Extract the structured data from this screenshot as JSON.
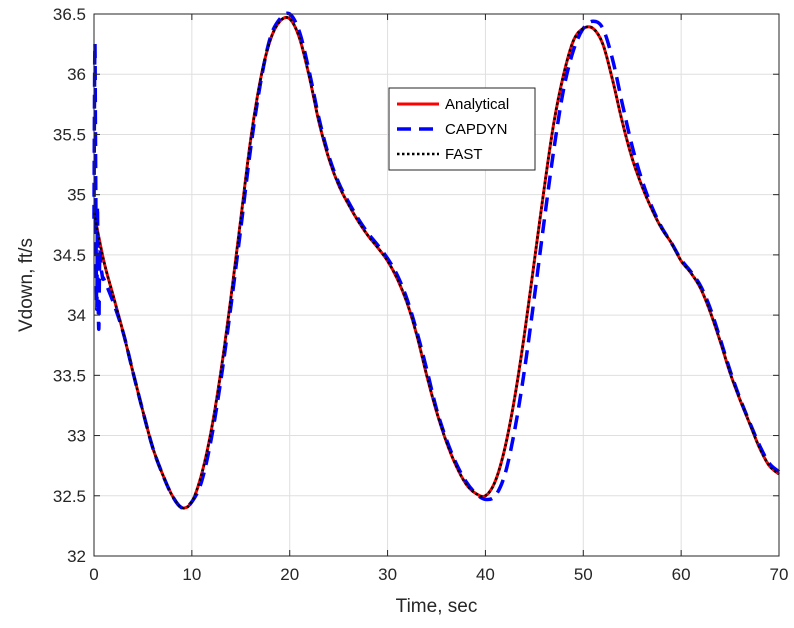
{
  "chart_data": {
    "type": "line",
    "xlabel": "Time, sec",
    "ylabel": "Vdown, ft/s",
    "xlim": [
      0,
      70
    ],
    "ylim": [
      32,
      36.5
    ],
    "xticks": [
      0,
      10,
      20,
      30,
      40,
      50,
      60,
      70
    ],
    "yticks": [
      32,
      32.5,
      33,
      33.5,
      34,
      34.5,
      35,
      35.5,
      36,
      36.5
    ],
    "xtick_labels": [
      "0",
      "10",
      "20",
      "30",
      "40",
      "50",
      "60",
      "70"
    ],
    "ytick_labels": [
      "32",
      "32.5",
      "33",
      "33.5",
      "34",
      "34.5",
      "35",
      "35.5",
      "36",
      "36.5"
    ],
    "grid": true,
    "legend_position": "top-center",
    "series": [
      {
        "name": "Analytical",
        "color": "#ff0000",
        "style": "solid",
        "x": [
          0,
          1,
          2,
          3,
          4,
          5,
          6,
          7,
          8,
          9,
          10,
          11,
          12,
          13,
          14,
          15,
          16,
          17,
          18,
          19,
          20,
          21,
          22,
          23,
          24,
          25,
          26,
          27,
          28,
          29,
          30,
          31,
          32,
          33,
          34,
          35,
          36,
          37,
          38,
          39,
          40,
          41,
          42,
          43,
          44,
          45,
          46,
          47,
          48,
          49,
          50,
          51,
          52,
          53,
          54,
          55,
          56,
          57,
          58,
          59,
          60,
          61,
          62,
          63,
          64,
          65,
          66,
          67,
          68,
          69,
          70
        ],
        "y": [
          34.85,
          34.45,
          34.15,
          33.85,
          33.52,
          33.2,
          32.9,
          32.68,
          32.5,
          32.4,
          32.45,
          32.68,
          33.05,
          33.55,
          34.15,
          34.8,
          35.45,
          35.95,
          36.28,
          36.44,
          36.46,
          36.3,
          35.98,
          35.6,
          35.3,
          35.08,
          34.92,
          34.78,
          34.66,
          34.56,
          34.45,
          34.3,
          34.1,
          33.83,
          33.5,
          33.2,
          32.95,
          32.75,
          32.6,
          32.52,
          32.5,
          32.62,
          32.9,
          33.32,
          33.85,
          34.45,
          35.05,
          35.6,
          36.0,
          36.28,
          36.38,
          36.38,
          36.25,
          35.95,
          35.6,
          35.3,
          35.07,
          34.88,
          34.72,
          34.6,
          34.45,
          34.35,
          34.22,
          34.02,
          33.78,
          33.52,
          33.3,
          33.1,
          32.9,
          32.75,
          32.68
        ]
      },
      {
        "name": "CAPDYN",
        "color": "#0000ff",
        "style": "dashed",
        "x": [
          0,
          0.05,
          0.1,
          0.15,
          0.2,
          0.25,
          0.3,
          0.35,
          0.4,
          0.45,
          0.5,
          0.55,
          0.6,
          0.7,
          0.8,
          0.9,
          1,
          2,
          3,
          4,
          5,
          6,
          7,
          8,
          9,
          10,
          11,
          12,
          13,
          14,
          15,
          16,
          17,
          18,
          19,
          20,
          21,
          22,
          23,
          24,
          25,
          26,
          27,
          28,
          29,
          30,
          31,
          32,
          33,
          34,
          35,
          36,
          37,
          38,
          39,
          40,
          41,
          42,
          43,
          44,
          45,
          46,
          47,
          48,
          49,
          50,
          51,
          52,
          53,
          54,
          55,
          56,
          57,
          58,
          59,
          60,
          61,
          62,
          63,
          64,
          65,
          66,
          67,
          68,
          69,
          70
        ],
        "y": [
          34.8,
          35.8,
          36.25,
          35.5,
          34.8,
          34.2,
          34.1,
          34.9,
          34.4,
          34.0,
          33.9,
          34.3,
          34.55,
          34.4,
          34.35,
          34.3,
          34.3,
          34.1,
          33.85,
          33.52,
          33.2,
          32.9,
          32.68,
          32.5,
          32.4,
          32.45,
          32.62,
          32.98,
          33.48,
          34.08,
          34.72,
          35.38,
          35.92,
          36.3,
          36.46,
          36.5,
          36.35,
          36.02,
          35.63,
          35.32,
          35.1,
          34.94,
          34.8,
          34.68,
          34.58,
          34.47,
          34.33,
          34.13,
          33.86,
          33.55,
          33.22,
          32.97,
          32.77,
          32.62,
          32.52,
          32.47,
          32.5,
          32.68,
          33.05,
          33.55,
          34.15,
          34.78,
          35.38,
          35.88,
          36.2,
          36.38,
          36.44,
          36.38,
          36.12,
          35.75,
          35.4,
          35.12,
          34.9,
          34.73,
          34.6,
          34.46,
          34.36,
          34.24,
          34.05,
          33.8,
          33.54,
          33.31,
          33.11,
          32.92,
          32.77,
          32.7
        ]
      },
      {
        "name": "FAST",
        "color": "#000000",
        "style": "dotted",
        "x": [
          0,
          1,
          2,
          3,
          4,
          5,
          6,
          7,
          8,
          9,
          10,
          11,
          12,
          13,
          14,
          15,
          16,
          17,
          18,
          19,
          20,
          21,
          22,
          23,
          24,
          25,
          26,
          27,
          28,
          29,
          30,
          31,
          32,
          33,
          34,
          35,
          36,
          37,
          38,
          39,
          40,
          41,
          42,
          43,
          44,
          45,
          46,
          47,
          48,
          49,
          50,
          51,
          52,
          53,
          54,
          55,
          56,
          57,
          58,
          59,
          60,
          61,
          62,
          63,
          64,
          65,
          66,
          67,
          68,
          69,
          70
        ],
        "y": [
          34.85,
          34.45,
          34.15,
          33.85,
          33.52,
          33.2,
          32.9,
          32.68,
          32.5,
          32.4,
          32.45,
          32.68,
          33.05,
          33.55,
          34.15,
          34.8,
          35.45,
          35.95,
          36.28,
          36.44,
          36.46,
          36.3,
          35.98,
          35.6,
          35.3,
          35.08,
          34.92,
          34.78,
          34.66,
          34.56,
          34.45,
          34.3,
          34.1,
          33.83,
          33.5,
          33.2,
          32.95,
          32.75,
          32.6,
          32.52,
          32.5,
          32.62,
          32.9,
          33.32,
          33.85,
          34.45,
          35.05,
          35.6,
          36.0,
          36.28,
          36.38,
          36.38,
          36.25,
          35.95,
          35.6,
          35.3,
          35.07,
          34.88,
          34.72,
          34.6,
          34.45,
          34.35,
          34.22,
          34.02,
          33.78,
          33.52,
          33.3,
          33.1,
          32.9,
          32.75,
          32.68
        ]
      }
    ]
  }
}
